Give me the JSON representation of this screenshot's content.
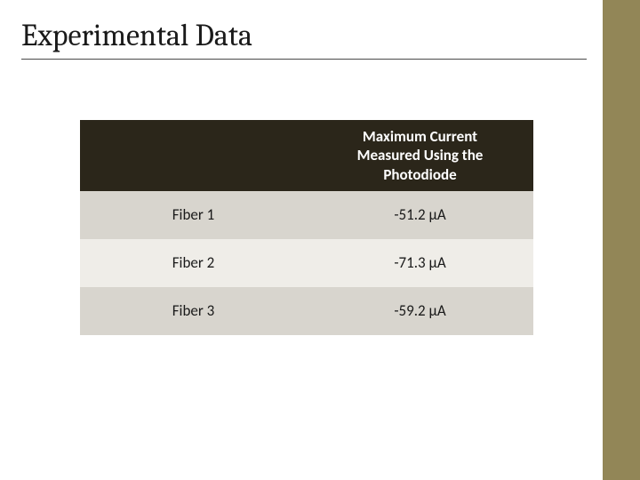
{
  "slide": {
    "title": "Experimental Data",
    "background_color": "#ffffff",
    "accent_bar_color": "#928657",
    "title_fontsize": 34,
    "title_color": "#1a1a1a",
    "title_underline_color": "#4a4a4a"
  },
  "table": {
    "type": "table",
    "header_bg": "#2b261a",
    "header_text_color": "#ffffff",
    "header_fontsize": 17,
    "header_fontweight": 700,
    "row_odd_bg": "#d8d5ce",
    "row_even_bg": "#efede8",
    "cell_fontsize": 17,
    "cell_text_color": "#1a1a1a",
    "columns": [
      "",
      "Maximum Current Measured Using the Photodiode"
    ],
    "rows": [
      {
        "label": "Fiber 1",
        "value": "-51.2 μA"
      },
      {
        "label": "Fiber 2",
        "value": "-71.3 μA"
      },
      {
        "label": "Fiber 3",
        "value": "-59.2 μA"
      }
    ]
  }
}
